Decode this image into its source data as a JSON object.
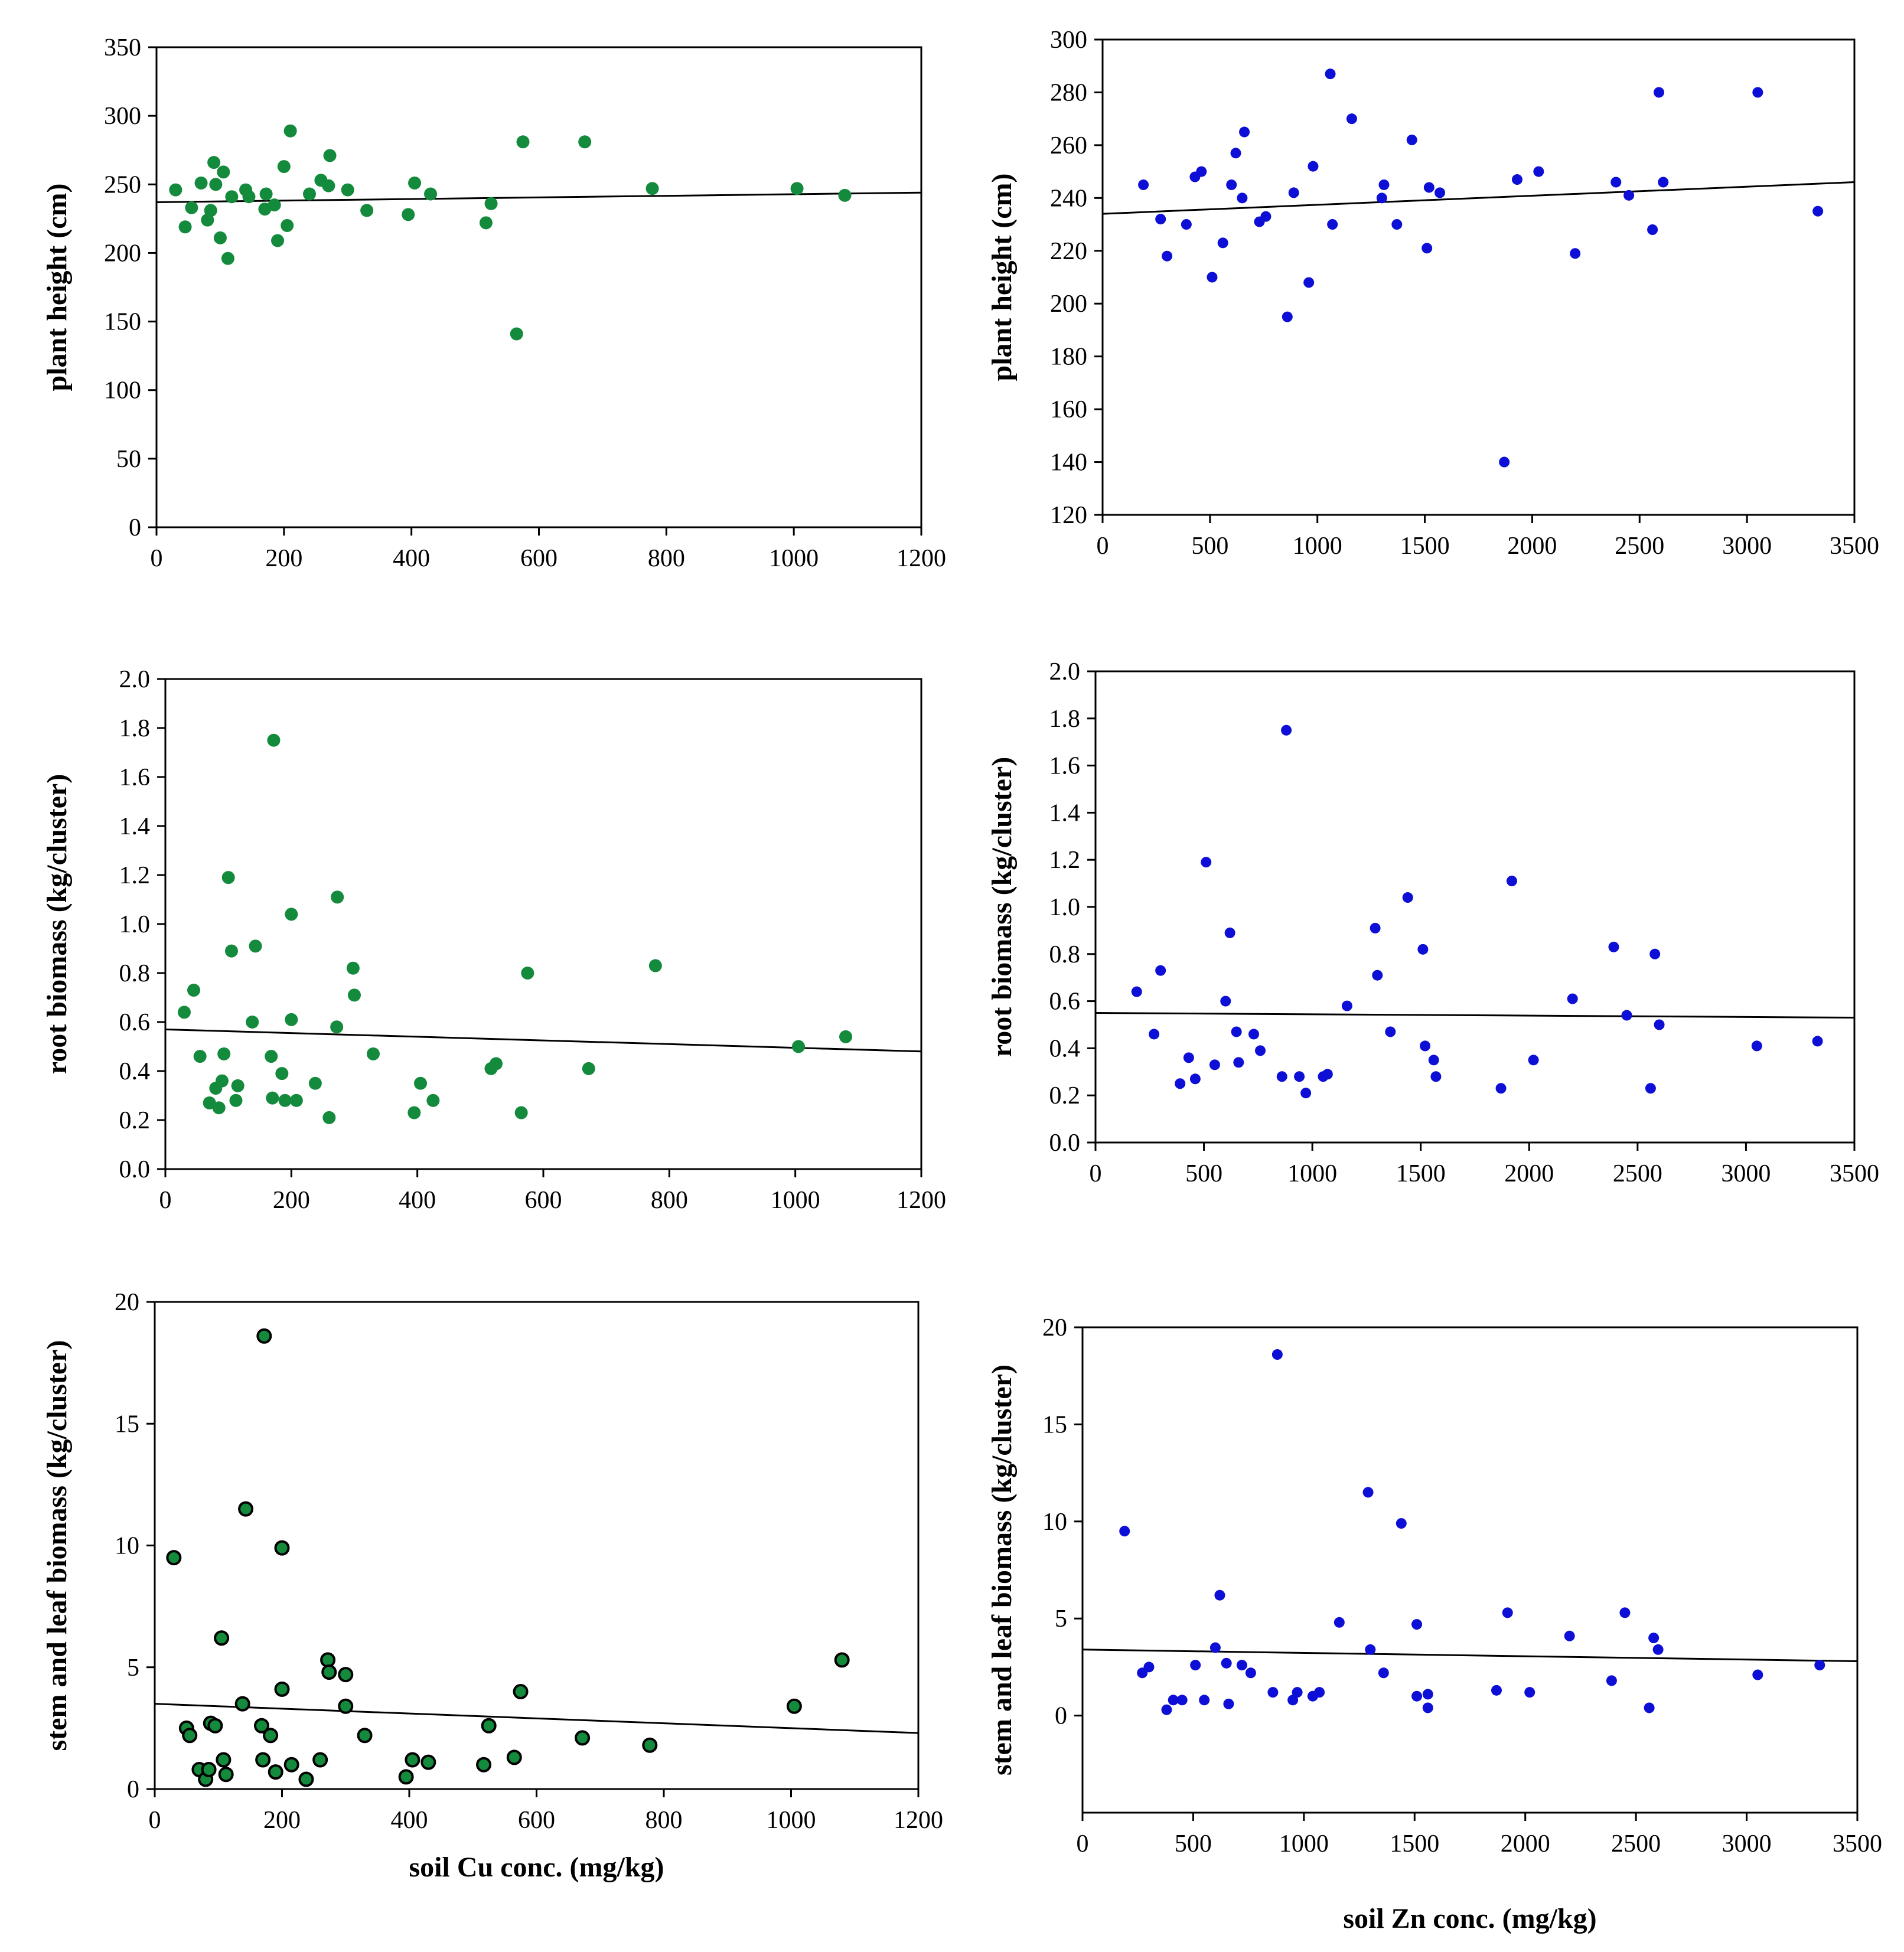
{
  "colors": {
    "green": "#138a3c",
    "blue": "#0d0fd6",
    "outline_dark": "#000000"
  },
  "chart_data": [
    {
      "id": "cu-height",
      "type": "scatter",
      "color_key": "green",
      "xlim": [
        0,
        1200
      ],
      "ylim": [
        0,
        350
      ],
      "xticks": [
        "0",
        "200",
        "400",
        "600",
        "800",
        "1000",
        "1200"
      ],
      "yticks": [
        "0",
        "50",
        "100",
        "150",
        "200",
        "250",
        "300",
        "350"
      ],
      "xlabel": "",
      "ylabel": "plant height (cm)",
      "trend": [
        [
          0,
          237
        ],
        [
          1200,
          244
        ]
      ],
      "points": [
        [
          30,
          246
        ],
        [
          45,
          219
        ],
        [
          55,
          233
        ],
        [
          70,
          251
        ],
        [
          80,
          224
        ],
        [
          85,
          231
        ],
        [
          90,
          266
        ],
        [
          93,
          250
        ],
        [
          100,
          211
        ],
        [
          105,
          259
        ],
        [
          112,
          196
        ],
        [
          118,
          241
        ],
        [
          140,
          246
        ],
        [
          145,
          241
        ],
        [
          170,
          232
        ],
        [
          172,
          243
        ],
        [
          185,
          235
        ],
        [
          190,
          209
        ],
        [
          200,
          263
        ],
        [
          205,
          220
        ],
        [
          210,
          289
        ],
        [
          240,
          243
        ],
        [
          258,
          253
        ],
        [
          270,
          249
        ],
        [
          272,
          271
        ],
        [
          300,
          246
        ],
        [
          330,
          231
        ],
        [
          395,
          228
        ],
        [
          405,
          251
        ],
        [
          430,
          243
        ],
        [
          517,
          222
        ],
        [
          525,
          236
        ],
        [
          565,
          141
        ],
        [
          575,
          281
        ],
        [
          672,
          281
        ],
        [
          778,
          247
        ],
        [
          1005,
          247
        ],
        [
          1080,
          242
        ]
      ]
    },
    {
      "id": "zn-height",
      "type": "scatter",
      "color_key": "blue",
      "xlim": [
        0,
        3500
      ],
      "ylim": [
        120,
        300
      ],
      "xticks": [
        "0",
        "500",
        "1000",
        "1500",
        "2000",
        "2500",
        "3000",
        "3500"
      ],
      "yticks": [
        "120",
        "140",
        "160",
        "180",
        "200",
        "220",
        "240",
        "260",
        "280",
        "300"
      ],
      "xlabel": "",
      "ylabel": "plant height (cm)",
      "trend": [
        [
          0,
          234
        ],
        [
          3500,
          246
        ]
      ],
      "points": [
        [
          190,
          245
        ],
        [
          270,
          232
        ],
        [
          300,
          218
        ],
        [
          390,
          230
        ],
        [
          430,
          248
        ],
        [
          460,
          250
        ],
        [
          510,
          210
        ],
        [
          560,
          223
        ],
        [
          600,
          245
        ],
        [
          620,
          257
        ],
        [
          650,
          240
        ],
        [
          660,
          265
        ],
        [
          730,
          231
        ],
        [
          760,
          233
        ],
        [
          860,
          195
        ],
        [
          890,
          242
        ],
        [
          960,
          208
        ],
        [
          980,
          252
        ],
        [
          1060,
          287
        ],
        [
          1070,
          230
        ],
        [
          1160,
          270
        ],
        [
          1300,
          240
        ],
        [
          1310,
          245
        ],
        [
          1370,
          230
        ],
        [
          1440,
          262
        ],
        [
          1510,
          221
        ],
        [
          1520,
          244
        ],
        [
          1570,
          242
        ],
        [
          1870,
          140
        ],
        [
          1930,
          247
        ],
        [
          2030,
          250
        ],
        [
          2200,
          219
        ],
        [
          2390,
          246
        ],
        [
          2450,
          241
        ],
        [
          2560,
          228
        ],
        [
          2590,
          280
        ],
        [
          2610,
          246
        ],
        [
          3050,
          280
        ],
        [
          3330,
          235
        ]
      ]
    },
    {
      "id": "cu-root",
      "type": "scatter",
      "color_key": "green",
      "xlim": [
        0,
        1200
      ],
      "ylim": [
        0,
        2.0
      ],
      "xticks": [
        "0",
        "200",
        "400",
        "600",
        "800",
        "1000",
        "1200"
      ],
      "yticks": [
        "0.0",
        "0.2",
        "0.4",
        "0.6",
        "0.8",
        "1.0",
        "1.2",
        "1.4",
        "1.6",
        "1.8",
        "2.0"
      ],
      "xlabel": "",
      "ylabel": "root biomass (kg/cluster)",
      "trend": [
        [
          0,
          0.57
        ],
        [
          1200,
          0.48
        ]
      ],
      "points": [
        [
          30,
          0.64
        ],
        [
          45,
          0.73
        ],
        [
          55,
          0.46
        ],
        [
          70,
          0.27
        ],
        [
          80,
          0.33
        ],
        [
          85,
          0.25
        ],
        [
          90,
          0.36
        ],
        [
          93,
          0.47
        ],
        [
          100,
          1.19
        ],
        [
          105,
          0.89
        ],
        [
          112,
          0.28
        ],
        [
          115,
          0.34
        ],
        [
          138,
          0.6
        ],
        [
          143,
          0.91
        ],
        [
          168,
          0.46
        ],
        [
          170,
          0.29
        ],
        [
          172,
          1.75
        ],
        [
          185,
          0.39
        ],
        [
          190,
          0.28
        ],
        [
          200,
          1.04
        ],
        [
          200,
          0.61
        ],
        [
          208,
          0.28
        ],
        [
          238,
          0.35
        ],
        [
          260,
          0.21
        ],
        [
          272,
          0.58
        ],
        [
          273,
          1.11
        ],
        [
          298,
          0.82
        ],
        [
          300,
          0.71
        ],
        [
          330,
          0.47
        ],
        [
          395,
          0.23
        ],
        [
          405,
          0.35
        ],
        [
          425,
          0.28
        ],
        [
          517,
          0.41
        ],
        [
          525,
          0.43
        ],
        [
          565,
          0.23
        ],
        [
          575,
          0.8
        ],
        [
          672,
          0.41
        ],
        [
          778,
          0.83
        ],
        [
          1005,
          0.5
        ],
        [
          1080,
          0.54
        ]
      ]
    },
    {
      "id": "zn-root",
      "type": "scatter",
      "color_key": "blue",
      "xlim": [
        0,
        3500
      ],
      "ylim": [
        0,
        2.0
      ],
      "xticks": [
        "0",
        "500",
        "1000",
        "1500",
        "2000",
        "2500",
        "3000",
        "3500"
      ],
      "yticks": [
        "0.0",
        "0.2",
        "0.4",
        "0.6",
        "0.8",
        "1.0",
        "1.2",
        "1.4",
        "1.6",
        "1.8",
        "2.0"
      ],
      "xlabel": "",
      "ylabel": "root biomass (kg/cluster)",
      "trend": [
        [
          0,
          0.55
        ],
        [
          3500,
          0.53
        ]
      ],
      "points": [
        [
          190,
          0.64
        ],
        [
          270,
          0.46
        ],
        [
          300,
          0.73
        ],
        [
          390,
          0.25
        ],
        [
          430,
          0.36
        ],
        [
          460,
          0.27
        ],
        [
          510,
          1.19
        ],
        [
          550,
          0.33
        ],
        [
          600,
          0.6
        ],
        [
          620,
          0.89
        ],
        [
          650,
          0.47
        ],
        [
          660,
          0.34
        ],
        [
          730,
          0.46
        ],
        [
          760,
          0.39
        ],
        [
          860,
          0.28
        ],
        [
          880,
          1.75
        ],
        [
          940,
          0.28
        ],
        [
          970,
          0.21
        ],
        [
          1050,
          0.28
        ],
        [
          1070,
          0.29
        ],
        [
          1160,
          0.58
        ],
        [
          1290,
          0.91
        ],
        [
          1300,
          0.71
        ],
        [
          1360,
          0.47
        ],
        [
          1440,
          1.04
        ],
        [
          1510,
          0.82
        ],
        [
          1520,
          0.41
        ],
        [
          1560,
          0.35
        ],
        [
          1570,
          0.28
        ],
        [
          1870,
          0.23
        ],
        [
          1920,
          1.11
        ],
        [
          2020,
          0.35
        ],
        [
          2200,
          0.61
        ],
        [
          2390,
          0.83
        ],
        [
          2450,
          0.54
        ],
        [
          2560,
          0.23
        ],
        [
          2580,
          0.8
        ],
        [
          2600,
          0.5
        ],
        [
          3050,
          0.41
        ],
        [
          3330,
          0.43
        ]
      ]
    },
    {
      "id": "cu-stem",
      "type": "scatter",
      "color_key": "green",
      "outlined": true,
      "xlim": [
        0,
        1200
      ],
      "ylim": [
        0,
        20
      ],
      "xticks": [
        "0",
        "200",
        "400",
        "600",
        "800",
        "1000",
        "1200"
      ],
      "yticks": [
        "0",
        "5",
        "10",
        "15",
        "20"
      ],
      "xlabel": "soil Cu conc. (mg/kg)",
      "ylabel": "stem and leaf biomass (kg/cluster)",
      "trend": [
        [
          0,
          3.5
        ],
        [
          1200,
          2.3
        ]
      ],
      "points": [
        [
          30,
          9.5
        ],
        [
          50,
          2.5
        ],
        [
          55,
          2.2
        ],
        [
          70,
          0.8
        ],
        [
          80,
          0.4
        ],
        [
          85,
          0.8
        ],
        [
          88,
          2.7
        ],
        [
          95,
          2.6
        ],
        [
          105,
          6.2
        ],
        [
          108,
          1.2
        ],
        [
          112,
          0.6
        ],
        [
          138,
          3.5
        ],
        [
          143,
          11.5
        ],
        [
          168,
          2.6
        ],
        [
          170,
          1.2
        ],
        [
          172,
          18.6
        ],
        [
          182,
          2.2
        ],
        [
          190,
          0.7
        ],
        [
          200,
          9.9
        ],
        [
          200,
          4.1
        ],
        [
          215,
          1.0
        ],
        [
          238,
          0.4
        ],
        [
          260,
          1.2
        ],
        [
          272,
          5.3
        ],
        [
          274,
          4.8
        ],
        [
          300,
          4.7
        ],
        [
          300,
          3.4
        ],
        [
          330,
          2.2
        ],
        [
          395,
          0.5
        ],
        [
          405,
          1.2
        ],
        [
          430,
          1.1
        ],
        [
          517,
          1.0
        ],
        [
          525,
          2.6
        ],
        [
          565,
          1.3
        ],
        [
          575,
          4.0
        ],
        [
          672,
          2.1
        ],
        [
          778,
          1.8
        ],
        [
          1005,
          3.4
        ],
        [
          1080,
          5.3
        ]
      ]
    },
    {
      "id": "zn-stem",
      "type": "scatter",
      "color_key": "blue",
      "xlim": [
        0,
        3500
      ],
      "ylim": [
        -5,
        20
      ],
      "xticks": [
        "0",
        "500",
        "1000",
        "1500",
        "2000",
        "2500",
        "3000",
        "3500"
      ],
      "yticks": [
        "0",
        "5",
        "10",
        "15",
        "20"
      ],
      "ytick_values": [
        0,
        5,
        10,
        15,
        20
      ],
      "xlabel": "soil Zn conc. (mg/kg)",
      "ylabel": "stem and leaf biomass (kg/cluster)",
      "trend": [
        [
          0,
          3.4
        ],
        [
          3500,
          2.8
        ]
      ],
      "points": [
        [
          190,
          9.5
        ],
        [
          270,
          2.2
        ],
        [
          300,
          2.5
        ],
        [
          380,
          0.3
        ],
        [
          410,
          0.8
        ],
        [
          450,
          0.8
        ],
        [
          510,
          2.6
        ],
        [
          550,
          0.8
        ],
        [
          600,
          3.5
        ],
        [
          620,
          6.2
        ],
        [
          650,
          2.7
        ],
        [
          660,
          0.6
        ],
        [
          720,
          2.6
        ],
        [
          760,
          2.2
        ],
        [
          860,
          1.2
        ],
        [
          880,
          18.6
        ],
        [
          950,
          0.8
        ],
        [
          970,
          1.2
        ],
        [
          1040,
          1.0
        ],
        [
          1070,
          1.2
        ],
        [
          1160,
          4.8
        ],
        [
          1290,
          11.5
        ],
        [
          1300,
          3.4
        ],
        [
          1360,
          2.2
        ],
        [
          1440,
          9.9
        ],
        [
          1510,
          4.7
        ],
        [
          1510,
          1.0
        ],
        [
          1560,
          0.4
        ],
        [
          1560,
          1.1
        ],
        [
          1870,
          1.3
        ],
        [
          1920,
          5.3
        ],
        [
          2020,
          1.2
        ],
        [
          2200,
          4.1
        ],
        [
          2390,
          1.8
        ],
        [
          2450,
          5.3
        ],
        [
          2560,
          0.4
        ],
        [
          2580,
          4.0
        ],
        [
          2600,
          3.4
        ],
        [
          3050,
          2.1
        ],
        [
          3330,
          2.6
        ]
      ]
    }
  ]
}
